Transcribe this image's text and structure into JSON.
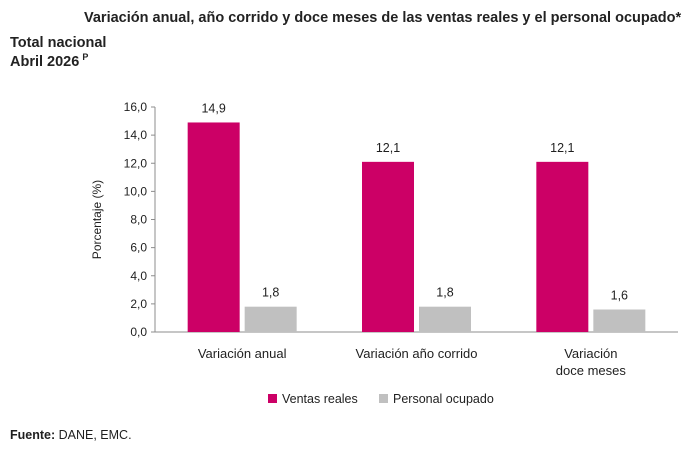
{
  "header": {
    "title": "Variación anual, año corrido y doce meses de las ventas reales y el personal ocupado*",
    "subtitle_line1": "Total nacional",
    "subtitle_line2": "Abril 2026",
    "subtitle_superscript": "P"
  },
  "footer": {
    "source_label": "Fuente:",
    "source_text": "DANE, EMC."
  },
  "chart_data": {
    "type": "bar",
    "title": "Variación anual, año corrido y doce meses de las ventas reales y el personal ocupado*",
    "xlabel": "",
    "ylabel": "Porcentaje (%)",
    "ylim": [
      0,
      16
    ],
    "ytick_step": 2,
    "ytick_labels": [
      "0,0",
      "2,0",
      "4,0",
      "6,0",
      "8,0",
      "10,0",
      "12,0",
      "14,0",
      "16,0"
    ],
    "grid": false,
    "legend_position": "bottom",
    "categories": [
      [
        "Variación anual"
      ],
      [
        "Variación año corrido"
      ],
      [
        "Variación",
        "doce meses"
      ]
    ],
    "series": [
      {
        "name": "Ventas reales",
        "color": "#cc0066",
        "values": [
          14.9,
          12.1,
          12.1
        ],
        "labels": [
          "14,9",
          "12,1",
          "12,1"
        ]
      },
      {
        "name": "Personal ocupado",
        "color": "#c0c0c0",
        "values": [
          1.8,
          1.8,
          1.6
        ],
        "labels": [
          "1,8",
          "1,8",
          "1,6"
        ]
      }
    ]
  }
}
